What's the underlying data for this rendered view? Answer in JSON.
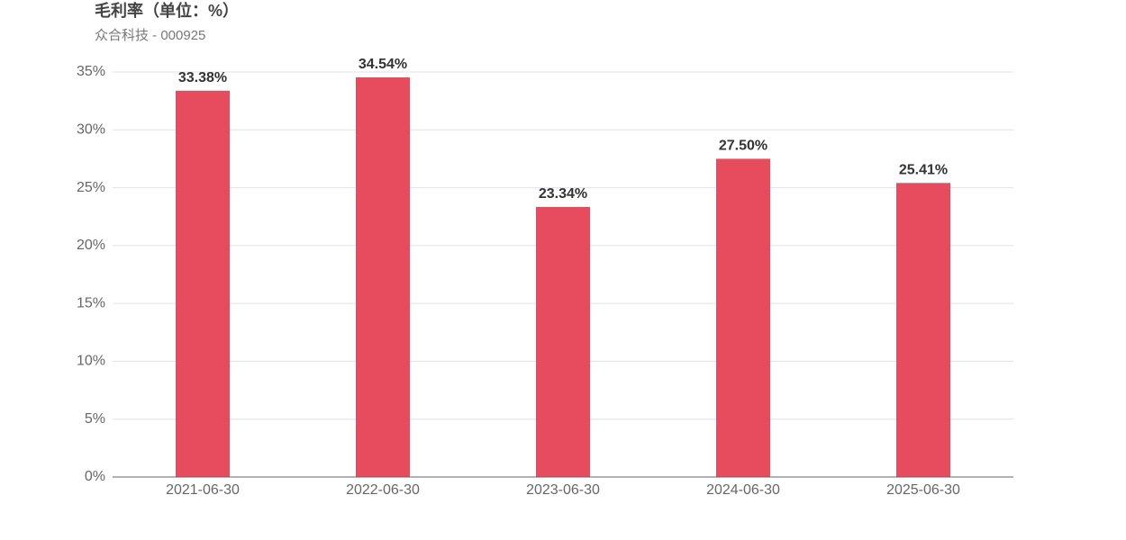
{
  "chart_data": {
    "type": "bar",
    "title": "毛利率（单位：%）",
    "subtitle": "众合科技 - 000925",
    "categories": [
      "2021-06-30",
      "2022-06-30",
      "2023-06-30",
      "2024-06-30",
      "2025-06-30"
    ],
    "values": [
      33.38,
      34.54,
      23.34,
      27.5,
      25.41
    ],
    "value_labels": [
      "33.38%",
      "34.54%",
      "23.34%",
      "27.50%",
      "25.41%"
    ],
    "color": "#e64c5e",
    "ylim": [
      0,
      35
    ],
    "yticks": [
      {
        "value": 0,
        "label": "0%"
      },
      {
        "value": 5,
        "label": "5%"
      },
      {
        "value": 10,
        "label": "10%"
      },
      {
        "value": 15,
        "label": "15%"
      },
      {
        "value": 20,
        "label": "20%"
      },
      {
        "value": 25,
        "label": "25%"
      },
      {
        "value": 30,
        "label": "30%"
      },
      {
        "value": 35,
        "label": "35%"
      }
    ],
    "grid": true
  }
}
